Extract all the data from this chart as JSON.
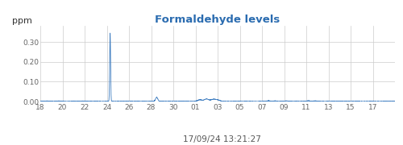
{
  "title": "Formaldehyde levels",
  "ylabel": "ppm",
  "xlabel": "17/09/24 13:21:27",
  "title_color": "#2B6CB0",
  "line_color": "#3a7abf",
  "background_color": "#ffffff",
  "grid_color": "#cccccc",
  "x_tick_labels": [
    "18",
    "20",
    "22",
    "24",
    "26",
    "28",
    "30",
    "01",
    "03",
    "05",
    "07",
    "09",
    "11",
    "13",
    "15",
    "17"
  ],
  "ylim": [
    0.0,
    0.38
  ],
  "yticks": [
    0.0,
    0.1,
    0.2,
    0.3
  ],
  "figsize": [
    5.0,
    1.8
  ],
  "dpi": 100
}
